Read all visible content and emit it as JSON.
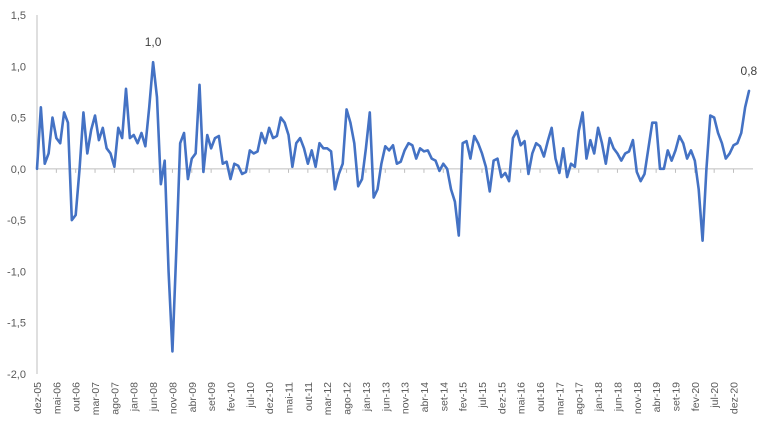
{
  "chart_data": {
    "type": "line",
    "title": "",
    "xlabel": "",
    "ylabel": "",
    "ylim": [
      -2.0,
      1.5
    ],
    "y_ticks": [
      "1,5",
      "1,0",
      "0,5",
      "0,0",
      "-0,5",
      "-1,0",
      "-1,5",
      "-2,0"
    ],
    "y_tick_values": [
      1.5,
      1.0,
      0.5,
      0.0,
      -0.5,
      -1.0,
      -1.5,
      -2.0
    ],
    "grid": false,
    "legend": "none",
    "series_color": "#4472C4",
    "axis_color": "#BFBFBF",
    "x_tick_labels": [
      "dez-05",
      "mai-06",
      "out-06",
      "mar-07",
      "ago-07",
      "jan-08",
      "jun-08",
      "nov-08",
      "abr-09",
      "set-09",
      "fev-10",
      "jul-10",
      "dez-10",
      "mai-11",
      "out-11",
      "mar-12",
      "ago-12",
      "jan-13",
      "jun-13",
      "nov-13",
      "abr-14",
      "set-14",
      "fev-15",
      "jul-15",
      "dez-15",
      "mai-16",
      "out-16",
      "mar-17",
      "ago-17",
      "jan-18",
      "jun-18",
      "nov-18",
      "abr-19",
      "set-19",
      "fev-20",
      "jul-20",
      "dez-20"
    ],
    "x_start": "dez-05",
    "x_end": "mai-21",
    "annotations": [
      {
        "text": "1,0",
        "x": "jun-08",
        "y": 1.04
      },
      {
        "text": "0,8",
        "x": "mai-21",
        "y": 0.76
      }
    ],
    "series": [
      {
        "values": [
          0.0,
          0.6,
          0.05,
          0.15,
          0.5,
          0.3,
          0.25,
          0.55,
          0.45,
          -0.5,
          -0.45,
          0.0,
          0.55,
          0.15,
          0.38,
          0.52,
          0.28,
          0.4,
          0.2,
          0.15,
          0.02,
          0.4,
          0.3,
          0.78,
          0.3,
          0.33,
          0.25,
          0.35,
          0.22,
          0.6,
          1.04,
          0.7,
          -0.15,
          0.08,
          -1.0,
          -1.78,
          -0.8,
          0.25,
          0.35,
          -0.1,
          0.1,
          0.15,
          0.82,
          -0.03,
          0.33,
          0.2,
          0.3,
          0.32,
          0.05,
          0.07,
          -0.1,
          0.05,
          0.03,
          -0.05,
          -0.03,
          0.18,
          0.15,
          0.17,
          0.35,
          0.25,
          0.4,
          0.3,
          0.32,
          0.5,
          0.45,
          0.33,
          0.02,
          0.25,
          0.3,
          0.2,
          0.05,
          0.18,
          0.02,
          0.25,
          0.2,
          0.2,
          0.17,
          -0.2,
          -0.05,
          0.05,
          0.58,
          0.45,
          0.25,
          -0.17,
          -0.1,
          0.2,
          0.55,
          -0.28,
          -0.2,
          0.05,
          0.22,
          0.18,
          0.23,
          0.05,
          0.07,
          0.18,
          0.25,
          0.23,
          0.1,
          0.2,
          0.17,
          0.18,
          0.1,
          0.08,
          -0.02,
          0.05,
          0.0,
          -0.2,
          -0.32,
          -0.65,
          0.25,
          0.27,
          0.1,
          0.32,
          0.25,
          0.15,
          0.02,
          -0.22,
          0.08,
          0.1,
          -0.08,
          -0.04,
          -0.12,
          0.3,
          0.37,
          0.23,
          0.27,
          -0.05,
          0.15,
          0.25,
          0.22,
          0.12,
          0.27,
          0.4,
          0.1,
          -0.04,
          0.2,
          -0.08,
          0.05,
          0.02,
          0.37,
          0.55,
          0.1,
          0.28,
          0.15,
          0.4,
          0.25,
          0.05,
          0.3,
          0.2,
          0.15,
          0.08,
          0.15,
          0.17,
          0.28,
          -0.03,
          -0.12,
          -0.05,
          0.2,
          0.45,
          0.45,
          0.0,
          0.0,
          0.18,
          0.08,
          0.18,
          0.32,
          0.25,
          0.1,
          0.18,
          0.08,
          -0.2,
          -0.7,
          0.0,
          0.52,
          0.5,
          0.35,
          0.25,
          0.1,
          0.15,
          0.23,
          0.25,
          0.35,
          0.6,
          0.76
        ]
      }
    ]
  }
}
